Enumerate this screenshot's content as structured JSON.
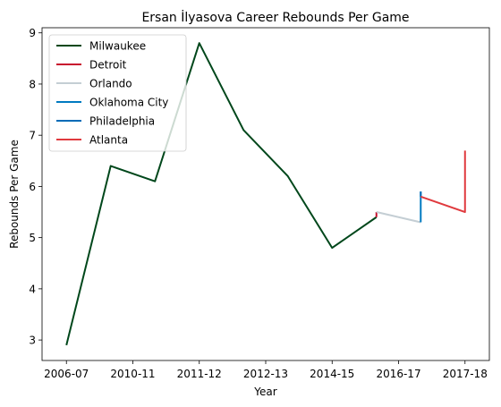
{
  "chart_data": {
    "type": "line",
    "title": "Ersan İlyasova Career Rebounds Per Game",
    "xlabel": "Year",
    "ylabel": "Rebounds Per Game",
    "x_ticks": [
      "2006-07",
      "2010-11",
      "2011-12",
      "2012-13",
      "2014-15",
      "2016-17",
      "2017-18"
    ],
    "xlim": [
      -0.55,
      9.55
    ],
    "ylim": [
      2.6,
      9.1
    ],
    "y_ticks": [
      3,
      4,
      5,
      6,
      7,
      8,
      9
    ],
    "grid": false,
    "legend_position": "top-left",
    "series": [
      {
        "name": "Milwaukee",
        "color": "#00471B",
        "x": [
          0,
          1,
          2,
          3,
          4,
          5,
          6,
          7
        ],
        "y": [
          2.9,
          6.4,
          6.1,
          8.8,
          7.1,
          6.2,
          4.8,
          5.4
        ]
      },
      {
        "name": "Detroit",
        "color": "#C8102E",
        "x": [
          7,
          7
        ],
        "y": [
          5.5,
          5.4
        ]
      },
      {
        "name": "Orlando",
        "color": "#C4CED4",
        "x": [
          7,
          8
        ],
        "y": [
          5.5,
          5.3
        ]
      },
      {
        "name": "Oklahoma City",
        "color": "#007AC1",
        "x": [
          8,
          8
        ],
        "y": [
          5.3,
          5.9
        ]
      },
      {
        "name": "Philadelphia",
        "color": "#006BB6",
        "x": [
          8,
          8
        ],
        "y": [
          5.9,
          5.8
        ]
      },
      {
        "name": "Atlanta",
        "color": "#E03A3E",
        "x": [
          8,
          9,
          9
        ],
        "y": [
          5.8,
          5.5,
          6.7
        ]
      }
    ]
  }
}
